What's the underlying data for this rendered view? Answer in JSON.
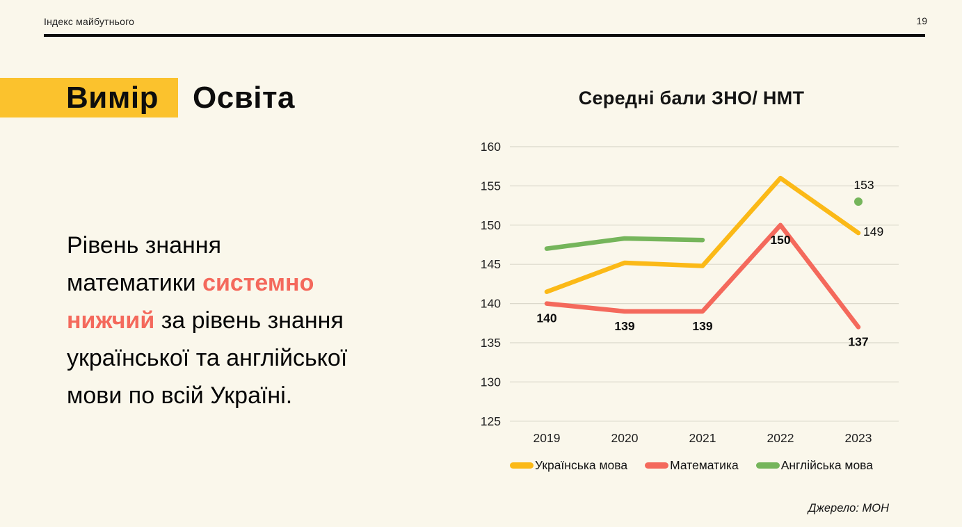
{
  "header": {
    "running_title": "Індекс майбутнього",
    "page_number": "19"
  },
  "title": {
    "dimension_label": "Вимір",
    "topic": "Освіта",
    "tag_color": "#fbc22d"
  },
  "message": {
    "highlight_color": "#f4695c",
    "full_text": "Рівень знання математики системно нижчий за рівень знання української та англійської мови по всій Україні.",
    "lines": [
      [
        {
          "t": "Рівень знання",
          "red": false
        }
      ],
      [
        {
          "t": "математики ",
          "red": false
        },
        {
          "t": "системно",
          "red": true
        }
      ],
      [
        {
          "t": "нижчий",
          "red": true
        },
        {
          "t": " за рівень знання",
          "red": false
        }
      ],
      [
        {
          "t": "української та англійської",
          "red": false
        }
      ],
      [
        {
          "t": "мови по всій Україні.",
          "red": false
        }
      ]
    ]
  },
  "chart_data": {
    "type": "line",
    "title": "Середні бали ЗНО/ НМТ",
    "x": [
      "2019",
      "2020",
      "2021",
      "2022",
      "2023"
    ],
    "ylim": [
      125,
      160
    ],
    "ytick_step": 5,
    "grid": true,
    "legend_position": "bottom",
    "grid_color": "#dbd8cb",
    "series": [
      {
        "name": "Українська мова",
        "color": "#fbb917",
        "values": [
          141.5,
          145.2,
          144.8,
          156,
          149
        ]
      },
      {
        "name": "Математика",
        "color": "#f4695c",
        "values": [
          140,
          139,
          139,
          150,
          137
        ]
      },
      {
        "name": "Англійська мова",
        "color": "#75b55b",
        "values": [
          147,
          148.3,
          148.1,
          null,
          153
        ]
      }
    ],
    "point_labels": [
      {
        "series": 1,
        "index": 0,
        "text": "140",
        "pos": "below",
        "bold": true
      },
      {
        "series": 1,
        "index": 1,
        "text": "139",
        "pos": "below",
        "bold": true
      },
      {
        "series": 1,
        "index": 2,
        "text": "139",
        "pos": "below",
        "bold": true
      },
      {
        "series": 1,
        "index": 3,
        "text": "150",
        "pos": "below",
        "bold": true
      },
      {
        "series": 1,
        "index": 4,
        "text": "137",
        "pos": "below",
        "bold": true
      },
      {
        "series": 0,
        "index": 4,
        "text": "149",
        "pos": "right",
        "bold": false
      },
      {
        "series": 2,
        "index": 4,
        "text": "153",
        "pos": "above",
        "bold": false
      }
    ]
  },
  "source": {
    "text": "Джерело: МОН"
  }
}
